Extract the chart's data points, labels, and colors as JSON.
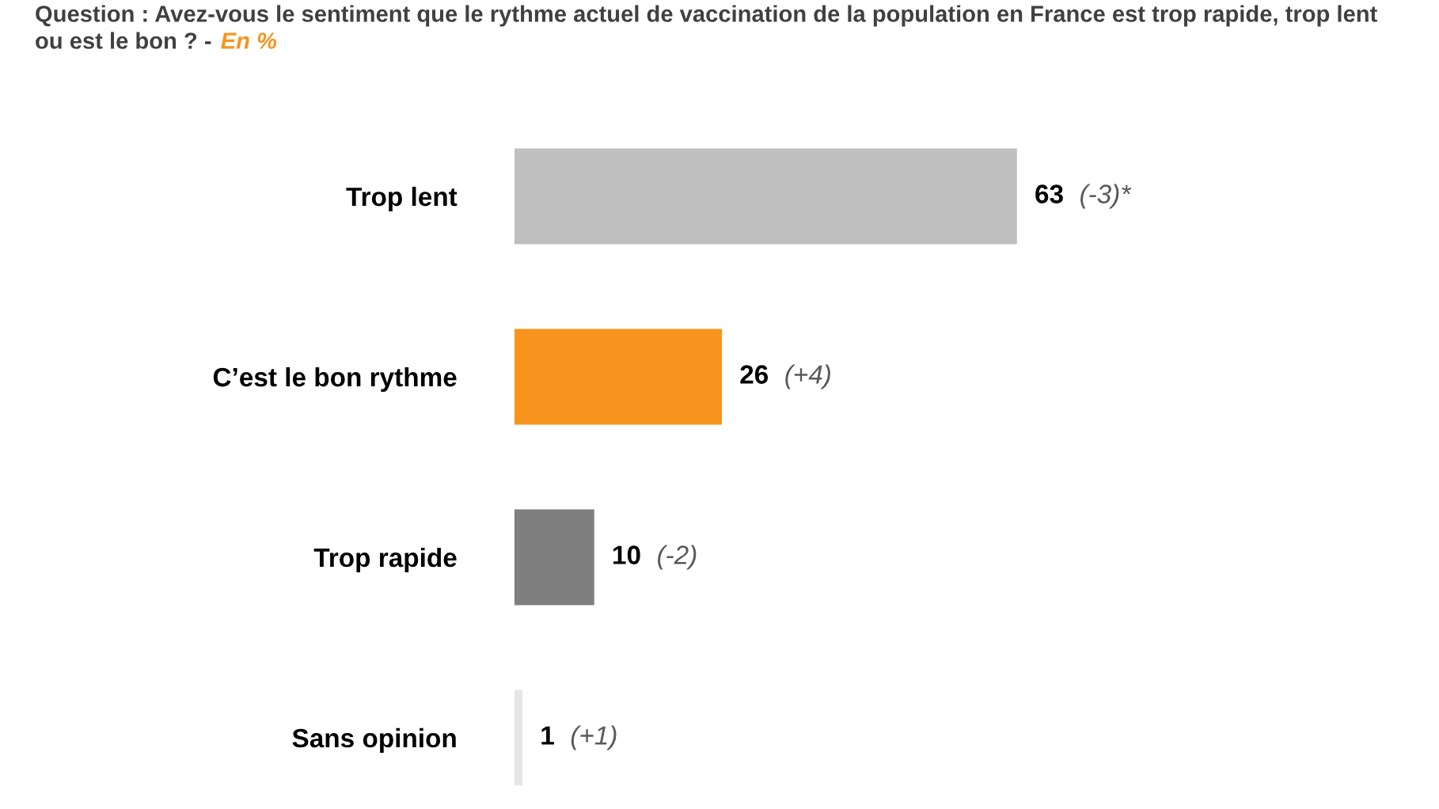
{
  "chart_data": {
    "type": "bar",
    "orientation": "horizontal",
    "title": "Question : Avez-vous le sentiment que le rythme actuel de vaccination de la population en France est trop rapide, trop lent ou est le bon ? -",
    "subtitle": "En %",
    "categories": [
      "Trop lent",
      "C’est le bon rythme",
      "Trop rapide",
      "Sans opinion"
    ],
    "values": [
      63,
      26,
      10,
      1
    ],
    "colors": [
      "#bfbfbf",
      "#f7941d",
      "#7f7f7f",
      "#e6e6e6"
    ],
    "value_labels": [
      "63 (-3)*",
      "26 (+4)",
      "10 (-2)",
      "1 (+1)"
    ],
    "grid": false,
    "legend": false
  }
}
